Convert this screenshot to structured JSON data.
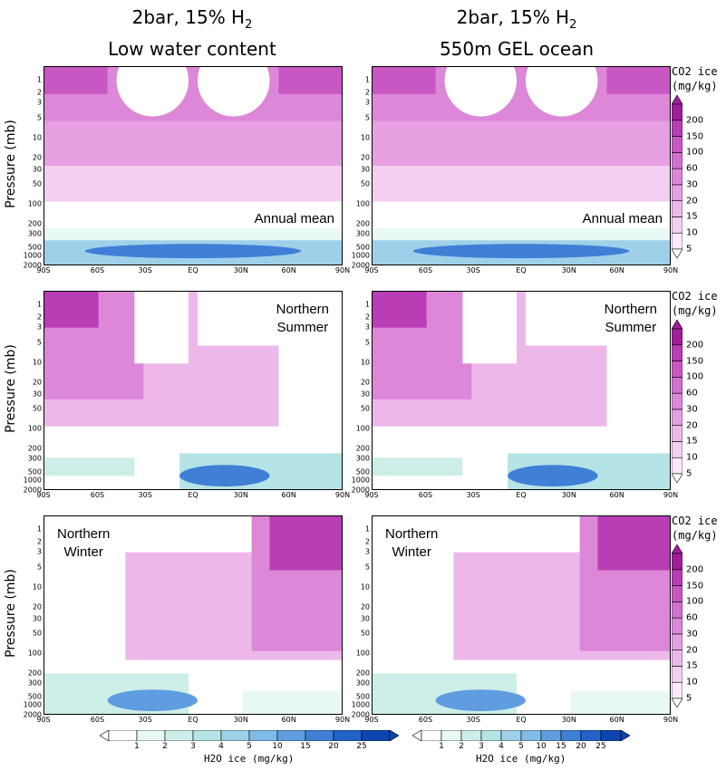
{
  "columns": [
    {
      "line1": "2bar, 15% H",
      "sub": "2",
      "line2": "Low water content"
    },
    {
      "line1": "2bar, 15% H",
      "sub": "2",
      "line2": "550m GEL ocean"
    }
  ],
  "rows": [
    {
      "label": "Annual mean"
    },
    {
      "label_line1": "Northern",
      "label_line2": "Summer"
    },
    {
      "label_line1": "Northern",
      "label_line2": "Winter"
    }
  ],
  "y_axis_label": "Pressure (mb)",
  "co2_colorbar": {
    "title_line1": "CO2 ice",
    "title_line2": "(mg/kg)",
    "levels": [
      "5",
      "10",
      "15",
      "20",
      "30",
      "60",
      "100",
      "150",
      "200"
    ],
    "colors": [
      "#fbe9fb",
      "#f4cff2",
      "#edb7ea",
      "#e5a0e2",
      "#dd87d9",
      "#d26fcf",
      "#c857c4",
      "#b93db4",
      "#a01e9c"
    ]
  },
  "h2o_colorbar": {
    "title": "H2O ice (mg/kg)",
    "levels": [
      "1",
      "2",
      "3",
      "4",
      "5",
      "10",
      "15",
      "20",
      "25"
    ],
    "colors": [
      "#e8f8f4",
      "#cdeee8",
      "#b5e3e6",
      "#9fd0ea",
      "#80bae9",
      "#5f9de0",
      "#3f7fd6",
      "#2162c8",
      "#0c44b0"
    ]
  },
  "chart_data": [
    {
      "type": "heatmap",
      "title": "Annual mean",
      "column": "2bar, 15% H2 Low water content",
      "xlabel": "",
      "ylabel": "Pressure (mb)",
      "x_ticks": [
        "90S",
        "60S",
        "30S",
        "EQ",
        "30N",
        "60N",
        "90N"
      ],
      "y_ticks": [
        "1",
        "2",
        "3",
        "5",
        "10",
        "20",
        "30",
        "50",
        "100",
        "200",
        "300",
        "500",
        "1000",
        "2000"
      ],
      "y_scale": "log",
      "ylim": [
        2000,
        0.6
      ],
      "series": [
        {
          "name": "CO2 ice",
          "unit": "mg/kg",
          "levels": [
            5,
            10,
            15,
            20,
            30,
            60,
            100,
            150,
            200
          ]
        },
        {
          "name": "H2O ice",
          "unit": "mg/kg",
          "levels": [
            1,
            2,
            3,
            4,
            5,
            10,
            15,
            20,
            25
          ]
        }
      ]
    },
    {
      "type": "heatmap",
      "title": "Annual mean",
      "column": "2bar, 15% H2 550m GEL ocean"
    },
    {
      "type": "heatmap",
      "title": "Northern Summer",
      "column": "2bar, 15% H2 Low water content"
    },
    {
      "type": "heatmap",
      "title": "Northern Summer",
      "column": "2bar, 15% H2 550m GEL ocean"
    },
    {
      "type": "heatmap",
      "title": "Northern Winter",
      "column": "2bar, 15% H2 Low water content"
    },
    {
      "type": "heatmap",
      "title": "Northern Winter",
      "column": "2bar, 15% H2 550m GEL ocean"
    }
  ],
  "x_ticks": [
    "90S",
    "60S",
    "30S",
    "EQ",
    "30N",
    "60N",
    "90N"
  ],
  "y_ticks": [
    "1",
    "2",
    "3",
    "5",
    "10",
    "20",
    "30",
    "50",
    "100",
    "200",
    "300",
    "500",
    "1000",
    "2000"
  ]
}
